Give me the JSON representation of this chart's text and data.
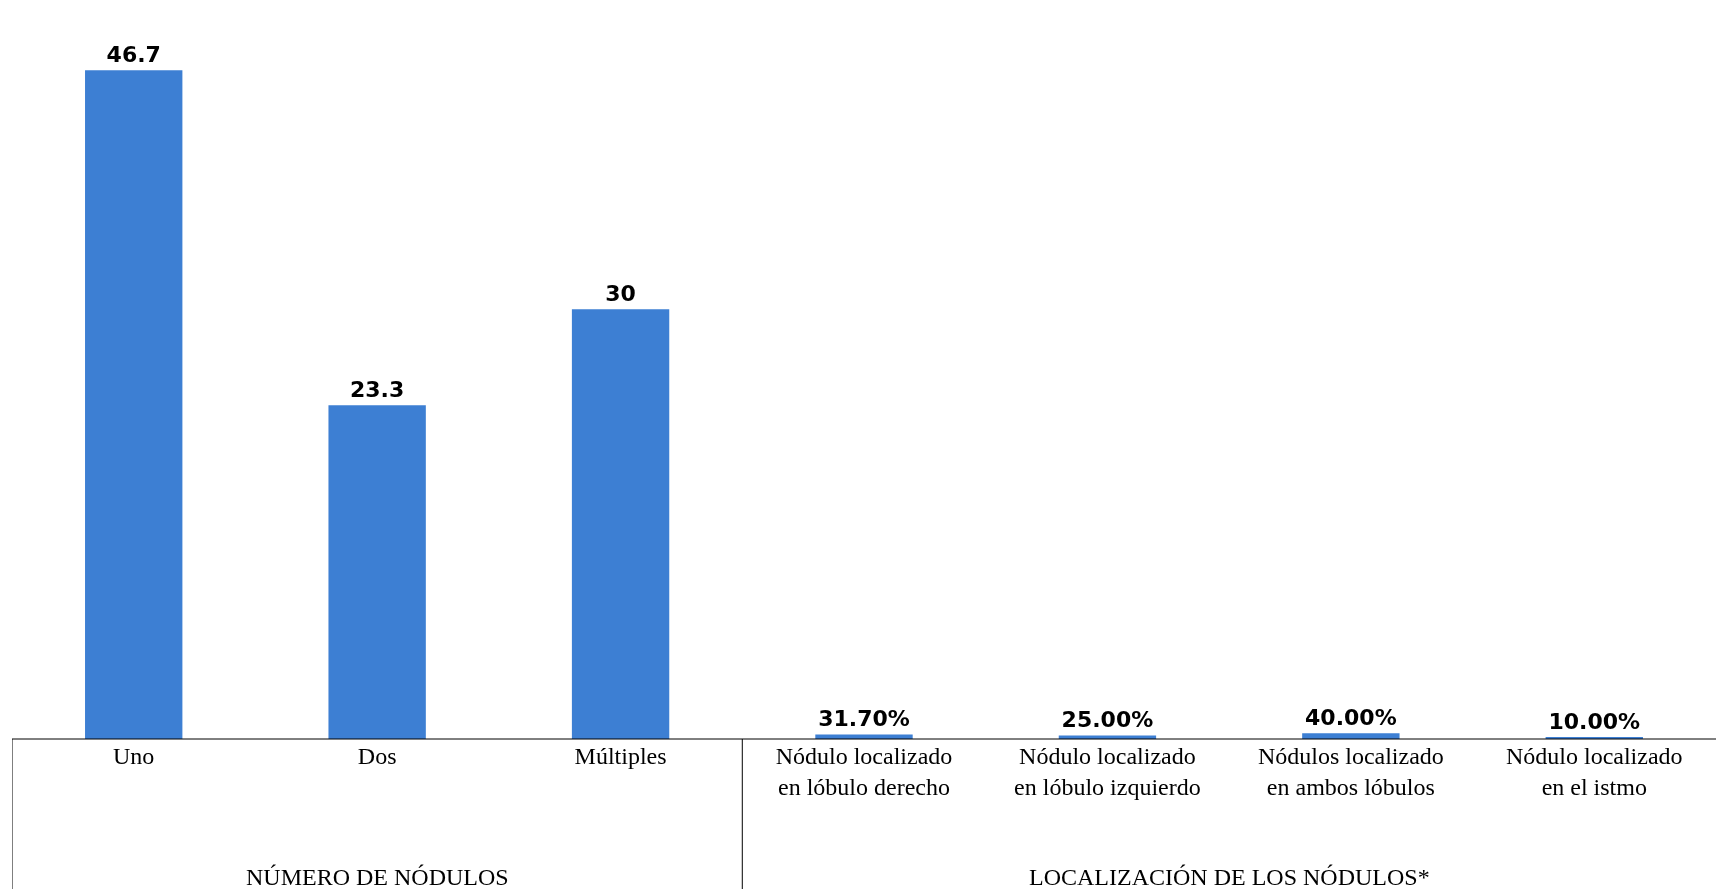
{
  "chart_data": {
    "type": "bar",
    "categories": [
      "Uno",
      "Dos",
      "Múltiples",
      "Nódulo localizado en lóbulo derecho",
      "Nódulo localizado en lóbulo izquierdo",
      "Nódulos localizado en ambos lóbulos",
      "Nódulo localizado en el istmo"
    ],
    "values": [
      46.7,
      23.3,
      30,
      0.317,
      0.25,
      0.4,
      0.1
    ],
    "value_labels": [
      "46.7",
      "23.3",
      "30",
      "31.70%",
      "25.00%",
      "40.00%",
      "10.00%"
    ],
    "color": "#3d7fd3",
    "annotations": [
      "NÚMERO DE NÓDULOS",
      "LOCALIZACIÓN DE LOS NÓDULOS*"
    ]
  }
}
